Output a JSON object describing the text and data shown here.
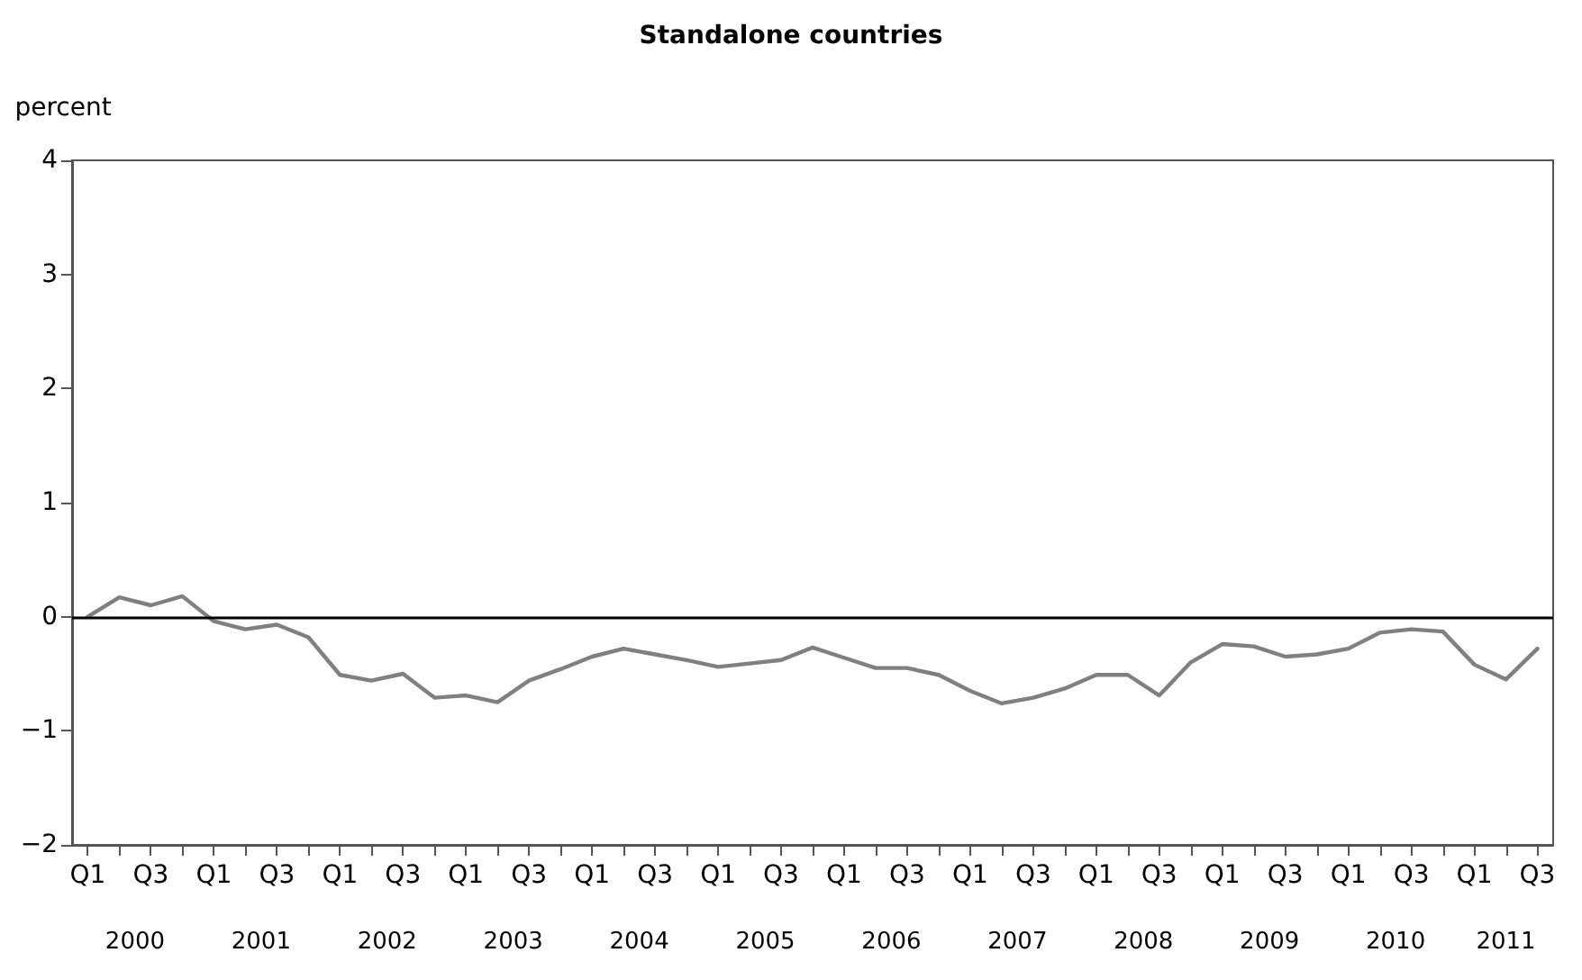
{
  "chart_data": {
    "type": "line",
    "title": "Standalone countries",
    "ylabel": "percent",
    "categories": [
      "Q1",
      null,
      "Q3",
      null,
      "Q1",
      null,
      "Q3",
      null,
      "Q1",
      null,
      "Q3",
      null,
      "Q1",
      null,
      "Q3",
      null,
      "Q1",
      null,
      "Q3",
      null,
      "Q1",
      null,
      "Q3",
      null,
      "Q1",
      null,
      "Q3",
      null,
      "Q1",
      null,
      "Q3",
      null,
      "Q1",
      null,
      "Q3",
      null,
      "Q1",
      null,
      "Q3",
      null,
      "Q1",
      null,
      "Q3",
      null,
      "Q1",
      null,
      "Q3"
    ],
    "series": [
      {
        "color": "#808080",
        "values": [
          0,
          0.17,
          0.1,
          0.18,
          -0.04,
          -0.11,
          -0.07,
          -0.18,
          -0.51,
          -0.56,
          -0.5,
          -0.71,
          -0.69,
          -0.75,
          -0.56,
          -0.46,
          -0.35,
          -0.28,
          -0.33,
          -0.38,
          -0.44,
          -0.41,
          -0.38,
          -0.27,
          -0.36,
          -0.45,
          -0.45,
          -0.51,
          -0.65,
          -0.76,
          -0.71,
          -0.63,
          -0.51,
          -0.51,
          -0.69,
          -0.4,
          -0.24,
          -0.26,
          -0.35,
          -0.33,
          -0.28,
          -0.14,
          -0.11,
          -0.13,
          -0.42,
          -0.55,
          -0.28
        ]
      }
    ],
    "ylim": [
      -2,
      4
    ],
    "yticks": [
      {
        "value": -2,
        "label": "−2"
      },
      {
        "value": -1,
        "label": "−1"
      },
      0,
      1,
      2,
      3,
      4
    ],
    "ref_lines": [
      {
        "axis": "y",
        "value": 0,
        "label": null,
        "color": "#000000"
      }
    ],
    "annotations": [
      "2000",
      "2001",
      "2002",
      "2003",
      "2004",
      "2005",
      "2006",
      "2007",
      "2008",
      "2009",
      "2010",
      "2011"
    ],
    "grid": false,
    "marker": "none",
    "line_style": "solid"
  }
}
